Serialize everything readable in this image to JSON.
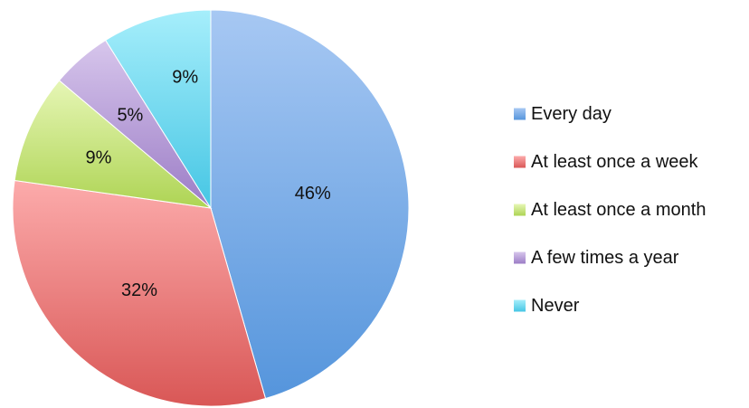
{
  "chart_data": {
    "type": "pie",
    "title": "",
    "legend_position": "right",
    "slices": [
      {
        "label": "Every day",
        "value": 46,
        "display": "46%",
        "color": "#5b9bd5",
        "color_light": "#a7c8f3",
        "color_dark": "#5595dc"
      },
      {
        "label": "At least once a week",
        "value": 32,
        "display": "32%",
        "color": "#e0605e",
        "color_light": "#fcabab",
        "color_dark": "#d95756"
      },
      {
        "label": "At least once a month",
        "value": 9,
        "display": "9%",
        "color": "#b5d55f",
        "color_light": "#e6f6b5",
        "color_dark": "#aed454"
      },
      {
        "label": "A few times a year",
        "value": 5,
        "display": "5%",
        "color": "#9e81c6",
        "color_light": "#d7c6ec",
        "color_dark": "#9c7dc6"
      },
      {
        "label": "Never",
        "value": 9,
        "display": "9%",
        "color": "#4fc9e6",
        "color_light": "#a6eefb",
        "color_dark": "#46c6e4"
      }
    ]
  }
}
